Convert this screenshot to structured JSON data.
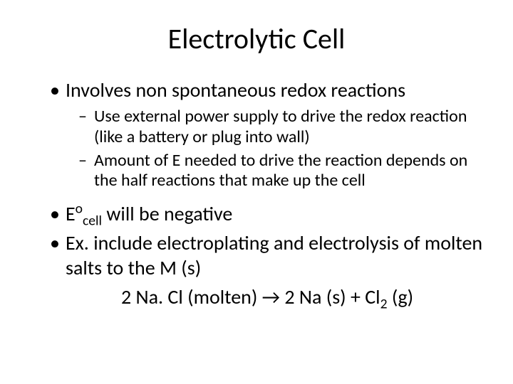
{
  "slide": {
    "title": "Electrolytic Cell",
    "bullets": {
      "b1": "Involves non spontaneous redox reactions",
      "b1_sub1": "Use external power supply to drive the redox reaction (like a battery or plug into wall)",
      "b1_sub2": "Amount of E needed to drive the reaction depends on the half reactions that make up the cell",
      "b2_pre": "E",
      "b2_sup": "o",
      "b2_sub": "cell",
      "b2_post": " will be negative",
      "b3": "Ex. include electroplating and electrolysis of molten salts to the M (s)",
      "eq_pre": "2 Na. Cl (molten) → 2 Na (s) + Cl",
      "eq_sub": "2",
      "eq_post": " (g)"
    }
  },
  "style": {
    "background_color": "#ffffff",
    "text_color": "#000000",
    "title_fontsize": 40,
    "l1_fontsize": 28,
    "l2_fontsize": 24,
    "font_family": "Calibri"
  }
}
